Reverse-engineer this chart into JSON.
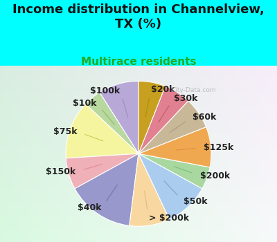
{
  "title": "Income distribution in Channelview,\nTX (%)",
  "subtitle": "Multirace residents",
  "bg_color": "#00FFFF",
  "chart_bg": "#d8efe8",
  "watermark": "City-Data.com",
  "labels": [
    "$100k",
    "$10k",
    "$75k",
    "$150k",
    "$40k",
    "> $200k",
    "$50k",
    "$200k",
    "$125k",
    "$60k",
    "$30k",
    "$20k"
  ],
  "values": [
    9,
    4,
    13,
    7,
    15,
    9,
    10,
    5,
    9,
    7,
    6,
    6
  ],
  "colors": [
    "#b8a8d8",
    "#b8d8a0",
    "#f5f5a0",
    "#f0b0b8",
    "#9898cc",
    "#f8d8a0",
    "#aaccee",
    "#a8d8a0",
    "#f0a850",
    "#c8b898",
    "#e08090",
    "#c8a020"
  ],
  "line_colors": [
    "#a090c0",
    "#90c070",
    "#d0d060",
    "#e090a0",
    "#7878b0",
    "#e0c080",
    "#80aad0",
    "#80c080",
    "#e09040",
    "#b0a080",
    "#c06070",
    "#b09010"
  ],
  "startangle": 90,
  "title_fontsize": 13,
  "subtitle_fontsize": 11,
  "label_fontsize": 9
}
